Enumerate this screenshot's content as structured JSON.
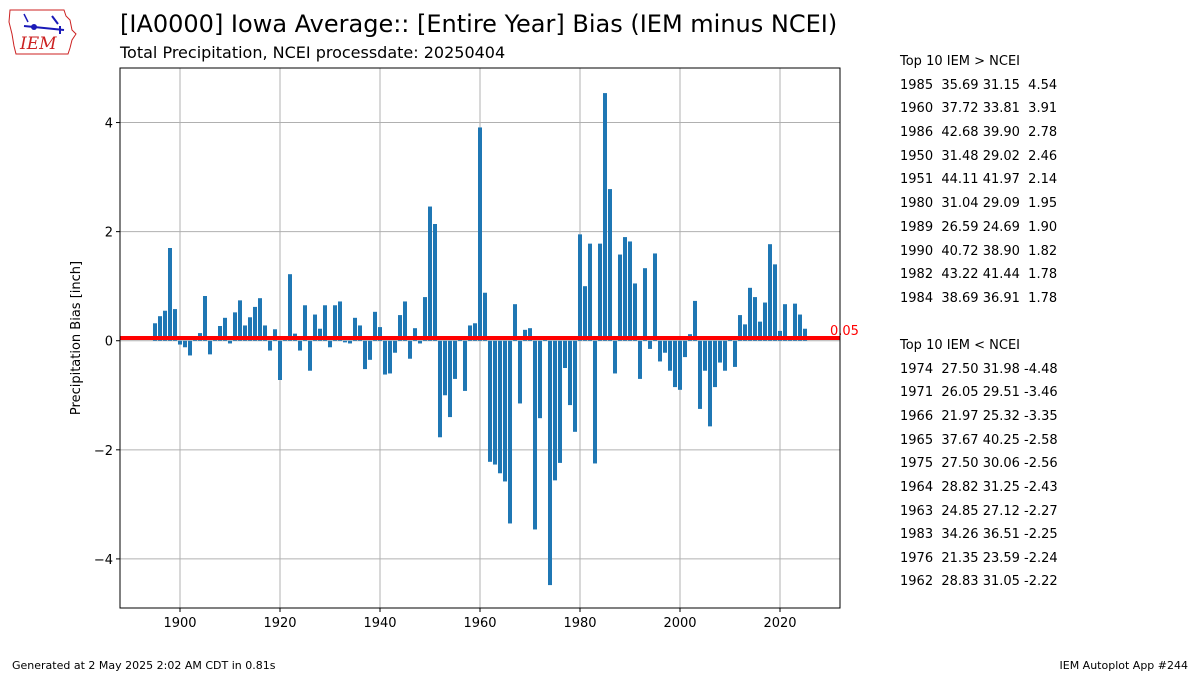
{
  "header": {
    "logo_text": "IEM",
    "title": "[IA0000] Iowa Average:: [Entire Year] Bias (IEM minus NCEI)",
    "subtitle": "Total Precipitation, NCEI processdate: 20250404"
  },
  "colors": {
    "bar": "#1f77b4",
    "mean_line": "#ff0000",
    "grid": "#b0b0b0",
    "logo": "#cc2222"
  },
  "chart_data": {
    "type": "bar",
    "title": "[IA0000] Iowa Average:: [Entire Year] Bias (IEM minus NCEI)",
    "subtitle": "Total Precipitation, NCEI processdate: 20250404",
    "xlabel": "",
    "ylabel": "Precipitation Bias [inch]",
    "xlim": [
      1888,
      2032
    ],
    "ylim": [
      -4.9,
      5.0
    ],
    "xticks": [
      1900,
      1920,
      1940,
      1960,
      1980,
      2000,
      2020
    ],
    "yticks": [
      -4,
      -2,
      0,
      2,
      4
    ],
    "ytick_labels": [
      "−4",
      "−2",
      "0",
      "2",
      "4"
    ],
    "grid": true,
    "mean_value": 0.05,
    "mean_label": "0.05",
    "x": [
      1895,
      1896,
      1897,
      1898,
      1899,
      1900,
      1901,
      1902,
      1903,
      1904,
      1905,
      1906,
      1907,
      1908,
      1909,
      1910,
      1911,
      1912,
      1913,
      1914,
      1915,
      1916,
      1917,
      1918,
      1919,
      1920,
      1921,
      1922,
      1923,
      1924,
      1925,
      1926,
      1927,
      1928,
      1929,
      1930,
      1931,
      1932,
      1933,
      1934,
      1935,
      1936,
      1937,
      1938,
      1939,
      1940,
      1941,
      1942,
      1943,
      1944,
      1945,
      1946,
      1947,
      1948,
      1949,
      1950,
      1951,
      1952,
      1953,
      1954,
      1955,
      1956,
      1957,
      1958,
      1959,
      1960,
      1961,
      1962,
      1963,
      1964,
      1965,
      1966,
      1967,
      1968,
      1969,
      1970,
      1971,
      1972,
      1973,
      1974,
      1975,
      1976,
      1977,
      1978,
      1979,
      1980,
      1981,
      1982,
      1983,
      1984,
      1985,
      1986,
      1987,
      1988,
      1989,
      1990,
      1991,
      1992,
      1993,
      1994,
      1995,
      1996,
      1997,
      1998,
      1999,
      2000,
      2001,
      2002,
      2003,
      2004,
      2005,
      2006,
      2007,
      2008,
      2009,
      2010,
      2011,
      2012,
      2013,
      2014,
      2015,
      2016,
      2017,
      2018,
      2019,
      2020,
      2021,
      2022,
      2023,
      2024,
      2025
    ],
    "values": [
      0.32,
      0.45,
      0.55,
      1.7,
      0.58,
      -0.07,
      -0.12,
      -0.27,
      0.02,
      0.14,
      0.82,
      -0.25,
      0.03,
      0.27,
      0.42,
      -0.05,
      0.52,
      0.74,
      0.28,
      0.43,
      0.62,
      0.78,
      0.28,
      -0.18,
      0.21,
      -0.72,
      0.02,
      1.22,
      0.13,
      -0.18,
      0.65,
      -0.55,
      0.48,
      0.22,
      0.65,
      -0.12,
      0.65,
      0.72,
      -0.03,
      -0.05,
      0.42,
      0.28,
      -0.52,
      -0.35,
      0.53,
      0.25,
      -0.62,
      -0.6,
      -0.22,
      0.47,
      0.72,
      -0.33,
      0.23,
      -0.05,
      0.8,
      2.46,
      2.14,
      -1.77,
      -1.0,
      -1.4,
      -0.7,
      0.03,
      -0.92,
      0.28,
      0.32,
      3.91,
      0.88,
      -2.22,
      -2.27,
      -2.43,
      -2.58,
      -3.35,
      0.67,
      -1.15,
      0.2,
      0.23,
      -3.46,
      -1.42,
      0.05,
      -4.48,
      -2.56,
      -2.24,
      -0.5,
      -1.18,
      -1.67,
      1.95,
      1.0,
      1.78,
      -2.25,
      1.78,
      4.54,
      2.78,
      -0.6,
      1.58,
      1.9,
      1.82,
      1.05,
      -0.7,
      1.33,
      -0.15,
      1.6,
      -0.38,
      -0.22,
      -0.55,
      -0.85,
      -0.9,
      -0.3,
      0.12,
      0.73,
      -1.25,
      -0.55,
      -1.57,
      -0.85,
      -0.4,
      -0.55,
      0.02,
      -0.48,
      0.47,
      0.3,
      0.97,
      0.8,
      0.35,
      0.7,
      1.77,
      1.4,
      0.18,
      0.67,
      0.02,
      0.68,
      0.48,
      0.22
    ]
  },
  "top_high": {
    "heading": "Top 10 IEM > NCEI",
    "rows": [
      "1985  35.69 31.15  4.54",
      "1960  37.72 33.81  3.91",
      "1986  42.68 39.90  2.78",
      "1950  31.48 29.02  2.46",
      "1951  44.11 41.97  2.14",
      "1980  31.04 29.09  1.95",
      "1989  26.59 24.69  1.90",
      "1990  40.72 38.90  1.82",
      "1982  43.22 41.44  1.78",
      "1984  38.69 36.91  1.78"
    ]
  },
  "top_low": {
    "heading": "Top 10 IEM < NCEI",
    "rows": [
      "1974  27.50 31.98 -4.48",
      "1971  26.05 29.51 -3.46",
      "1966  21.97 25.32 -3.35",
      "1965  37.67 40.25 -2.58",
      "1975  27.50 30.06 -2.56",
      "1964  28.82 31.25 -2.43",
      "1963  24.85 27.12 -2.27",
      "1983  34.26 36.51 -2.25",
      "1976  21.35 23.59 -2.24",
      "1962  28.83 31.05 -2.22"
    ]
  },
  "footer": {
    "generated": "Generated at 2 May 2025 2:02 AM CDT in 0.81s",
    "app": "IEM Autoplot App #244"
  }
}
